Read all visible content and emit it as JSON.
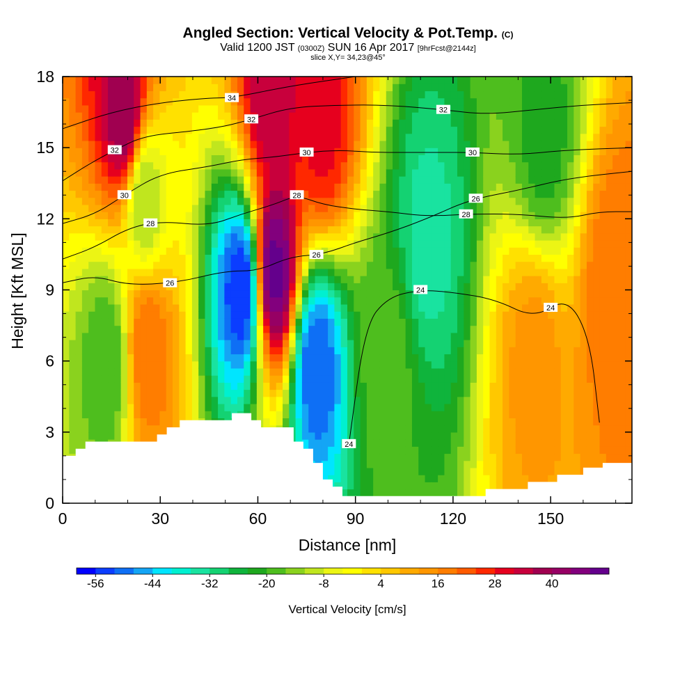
{
  "title": {
    "main": "Angled Section: Vertical Velocity & Pot.Temp.",
    "main_suffix": "(C)",
    "valid_prefix": "Valid 1200 JST",
    "valid_zulu": "(0300Z)",
    "valid_date": "SUN 16 Apr 2017",
    "forecast": "[9hrFcst@2144z]",
    "slice": "slice X,Y= 34,23@45°"
  },
  "chart_data": {
    "type": "heatmap",
    "xlabel": "Distance [nm]",
    "ylabel": "Height [Kft MSL]",
    "xlim": [
      0,
      175
    ],
    "ylim": [
      0,
      18
    ],
    "x_ticks": [
      0,
      30,
      60,
      90,
      120,
      150
    ],
    "y_ticks": [
      0,
      3,
      6,
      9,
      12,
      15,
      18
    ],
    "shaded_field": "Vertical Velocity [cm/s]",
    "contour_field": "Potential Temperature (C)",
    "colorbar": {
      "label": "Vertical Velocity [cm/s]",
      "min": -60,
      "max": 52,
      "step": 4,
      "tick_labels": [
        -56,
        -44,
        -32,
        -20,
        -8,
        4,
        16,
        28,
        40
      ],
      "colors": [
        "#0000ff",
        "#0b3dff",
        "#0e6ff5",
        "#14a5f5",
        "#00e5ff",
        "#00f0d0",
        "#19e3a0",
        "#14d272",
        "#0fb43c",
        "#1ea81e",
        "#4ebe1e",
        "#8ad21e",
        "#c0e61e",
        "#ecf514",
        "#ffff00",
        "#ffe100",
        "#ffc800",
        "#ffaa00",
        "#ff9600",
        "#ff7d00",
        "#ff5a00",
        "#ff2800",
        "#e6001e",
        "#c8003c",
        "#a00050",
        "#960064",
        "#82007d",
        "#64008c"
      ]
    },
    "velocity_centers": [
      {
        "x": 19,
        "z": 16.3,
        "value": 40
      },
      {
        "x": 25,
        "z": 12.8,
        "value": -12
      },
      {
        "x": 26,
        "z": 6.5,
        "value": 20
      },
      {
        "x": 14,
        "z": 6.0,
        "value": -20
      },
      {
        "x": 55,
        "z": 9.0,
        "value": -56
      },
      {
        "x": 65,
        "z": 9.8,
        "value": 50
      },
      {
        "x": 64,
        "z": 17.2,
        "value": 36
      },
      {
        "x": 78,
        "z": 5.8,
        "value": -52
      },
      {
        "x": 80,
        "z": 16.0,
        "value": 30
      },
      {
        "x": 100,
        "z": 6.0,
        "value": -18
      },
      {
        "x": 112,
        "z": 11.0,
        "value": -34
      },
      {
        "x": 145,
        "z": 6.0,
        "value": 14
      },
      {
        "x": 170,
        "z": 9.0,
        "value": 20
      },
      {
        "x": 148,
        "z": 15.5,
        "value": -22
      }
    ],
    "isentropes": [
      {
        "theta": 24,
        "label_x": [
          88,
          110,
          150
        ],
        "points": [
          [
            88,
            2.5
          ],
          [
            93,
            7.5
          ],
          [
            100,
            8.7
          ],
          [
            110,
            9.0
          ],
          [
            120,
            8.9
          ],
          [
            133,
            8.6
          ],
          [
            145,
            7.8
          ],
          [
            155,
            8.7
          ],
          [
            162,
            7
          ],
          [
            165,
            3.4
          ]
        ]
      },
      {
        "theta": 26,
        "label_x": [
          33,
          78,
          127
        ],
        "points": [
          [
            0,
            9.3
          ],
          [
            10,
            9.6
          ],
          [
            20,
            9.2
          ],
          [
            35,
            9.3
          ],
          [
            50,
            9.8
          ],
          [
            60,
            9.8
          ],
          [
            70,
            10.4
          ],
          [
            80,
            10.5
          ],
          [
            90,
            11
          ],
          [
            100,
            11.4
          ],
          [
            112,
            12.0
          ],
          [
            125,
            12.8
          ],
          [
            140,
            13.2
          ],
          [
            155,
            13.7
          ],
          [
            175,
            14.0
          ]
        ]
      },
      {
        "theta": 28,
        "label_x": [
          27,
          72,
          124
        ],
        "points": [
          [
            0,
            10.3
          ],
          [
            10,
            10.8
          ],
          [
            20,
            11.6
          ],
          [
            30,
            11.9
          ],
          [
            45,
            11.7
          ],
          [
            55,
            12.2
          ],
          [
            65,
            12.6
          ],
          [
            72,
            13.0
          ],
          [
            80,
            12.6
          ],
          [
            90,
            12.4
          ],
          [
            100,
            12.3
          ],
          [
            112,
            12.1
          ],
          [
            125,
            12.2
          ],
          [
            140,
            12.2
          ],
          [
            155,
            12.0
          ],
          [
            165,
            12.3
          ],
          [
            175,
            12.3
          ]
        ]
      },
      {
        "theta": 30,
        "label_x": [
          19,
          75,
          126
        ],
        "points": [
          [
            0,
            11.8
          ],
          [
            10,
            12.2
          ],
          [
            19,
            13.0
          ],
          [
            30,
            13.9
          ],
          [
            45,
            14.2
          ],
          [
            55,
            14.5
          ],
          [
            65,
            14.6
          ],
          [
            75,
            14.8
          ],
          [
            85,
            14.9
          ],
          [
            95,
            14.8
          ],
          [
            105,
            14.8
          ],
          [
            115,
            14.8
          ],
          [
            126,
            14.8
          ],
          [
            140,
            14.7
          ],
          [
            155,
            14.9
          ],
          [
            175,
            15.0
          ]
        ]
      },
      {
        "theta": 32,
        "label_x": [
          16,
          58,
          117
        ],
        "points": [
          [
            0,
            13.6
          ],
          [
            8,
            14.3
          ],
          [
            16,
            14.9
          ],
          [
            25,
            15.5
          ],
          [
            40,
            15.7
          ],
          [
            50,
            15.9
          ],
          [
            58,
            16.2
          ],
          [
            70,
            16.7
          ],
          [
            85,
            16.8
          ],
          [
            100,
            16.8
          ],
          [
            117,
            16.6
          ],
          [
            130,
            16.4
          ],
          [
            145,
            16.6
          ],
          [
            160,
            16.8
          ],
          [
            175,
            16.9
          ]
        ]
      },
      {
        "theta": 34,
        "label_x": [
          52
        ],
        "points": [
          [
            0,
            15.8
          ],
          [
            15,
            16.5
          ],
          [
            30,
            16.9
          ],
          [
            45,
            17.1
          ],
          [
            52,
            17.1
          ],
          [
            70,
            17.6
          ],
          [
            90,
            18.0
          ]
        ]
      }
    ],
    "terrain_kft": [
      [
        0,
        2.0
      ],
      [
        4,
        2.0
      ],
      [
        4,
        2.3
      ],
      [
        7,
        2.3
      ],
      [
        7,
        2.6
      ],
      [
        29,
        2.6
      ],
      [
        29,
        2.9
      ],
      [
        32,
        2.9
      ],
      [
        32,
        3.2
      ],
      [
        36,
        3.2
      ],
      [
        36,
        3.5
      ],
      [
        52,
        3.5
      ],
      [
        52,
        3.8
      ],
      [
        58,
        3.8
      ],
      [
        58,
        3.5
      ],
      [
        61,
        3.5
      ],
      [
        61,
        3.2
      ],
      [
        71,
        3.2
      ],
      [
        71,
        2.6
      ],
      [
        74,
        2.6
      ],
      [
        74,
        2.3
      ],
      [
        77,
        2.3
      ],
      [
        77,
        1.7
      ],
      [
        80,
        1.7
      ],
      [
        80,
        1.0
      ],
      [
        83,
        1.0
      ],
      [
        83,
        0.7
      ],
      [
        86,
        0.7
      ],
      [
        86,
        0.3
      ],
      [
        130,
        0.3
      ],
      [
        130,
        0.6
      ],
      [
        143,
        0.6
      ],
      [
        143,
        0.9
      ],
      [
        152,
        0.9
      ],
      [
        152,
        1.2
      ],
      [
        160,
        1.2
      ],
      [
        160,
        1.5
      ],
      [
        166,
        1.5
      ],
      [
        166,
        1.7
      ],
      [
        175,
        1.7
      ]
    ]
  }
}
